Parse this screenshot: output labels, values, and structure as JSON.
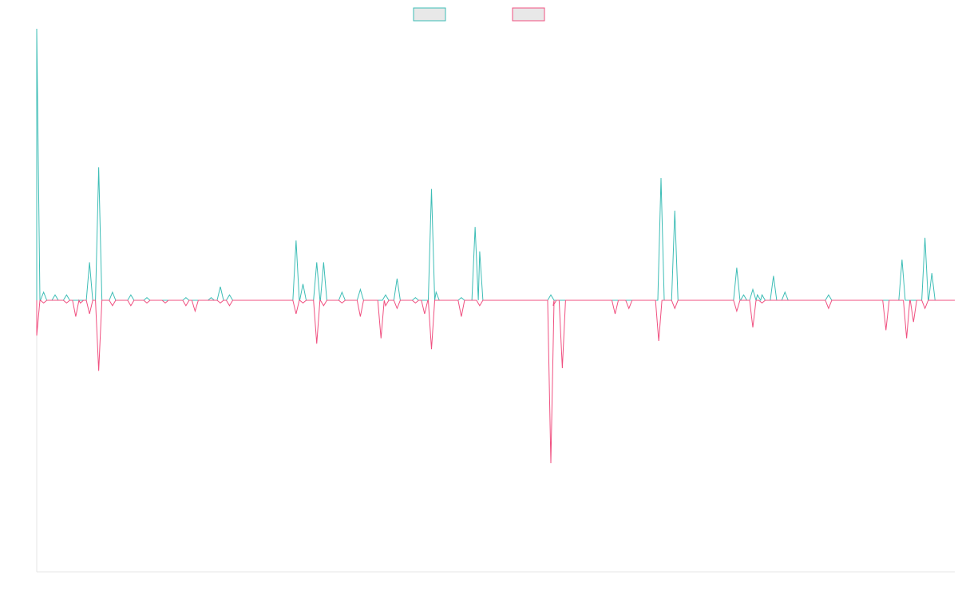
{
  "chart_data": {
    "type": "line",
    "title": "",
    "xlabel": "",
    "ylabel": "",
    "ylim": [
      -1,
      1
    ],
    "grid": false,
    "legend_position": "top-center",
    "series": [
      {
        "color": "#3dbdb6",
        "fill": "#e8e8e8",
        "events": [
          [
            0,
            1.0
          ],
          [
            1.5,
            0.03
          ],
          [
            4,
            0.02
          ],
          [
            6.5,
            0.02
          ],
          [
            11.5,
            0.14
          ],
          [
            13.5,
            0.49
          ],
          [
            16.5,
            0.03
          ],
          [
            20.5,
            0.02
          ],
          [
            24,
            0.01
          ],
          [
            32.5,
            0.01
          ],
          [
            38,
            0.01
          ],
          [
            40,
            0.05
          ],
          [
            42,
            0.02
          ],
          [
            56.5,
            0.22
          ],
          [
            58,
            0.06
          ],
          [
            61,
            0.14
          ],
          [
            62.5,
            0.14
          ],
          [
            66.5,
            0.03
          ],
          [
            70.5,
            0.04
          ],
          [
            76,
            0.02
          ],
          [
            78.5,
            0.08
          ],
          [
            82.5,
            0.01
          ],
          [
            86,
            0.41
          ],
          [
            87,
            0.03
          ],
          [
            92.5,
            0.01
          ],
          [
            95.5,
            0.27
          ],
          [
            96.5,
            0.18
          ],
          [
            112,
            0.02
          ],
          [
            136,
            0.45
          ],
          [
            139,
            0.33
          ],
          [
            152.5,
            0.12
          ],
          [
            154,
            0.02
          ],
          [
            156,
            0.04
          ],
          [
            157,
            0.02
          ],
          [
            158,
            0.02
          ],
          [
            160.5,
            0.09
          ],
          [
            163,
            0.03
          ],
          [
            172.5,
            0.02
          ],
          [
            188.5,
            0.15
          ],
          [
            193.5,
            0.23
          ],
          [
            195,
            0.1
          ]
        ]
      },
      {
        "color": "#f05080",
        "fill": "#e8e8e8",
        "events": [
          [
            0,
            0.13
          ],
          [
            1.5,
            0.01
          ],
          [
            6.5,
            0.01
          ],
          [
            8.5,
            0.06
          ],
          [
            9.5,
            0.01
          ],
          [
            11.5,
            0.05
          ],
          [
            13.5,
            0.26
          ],
          [
            16.5,
            0.02
          ],
          [
            20.5,
            0.02
          ],
          [
            24,
            0.01
          ],
          [
            28,
            0.01
          ],
          [
            32.5,
            0.02
          ],
          [
            34.5,
            0.04
          ],
          [
            40,
            0.01
          ],
          [
            42,
            0.02
          ],
          [
            56.5,
            0.05
          ],
          [
            58,
            0.01
          ],
          [
            61,
            0.16
          ],
          [
            62.5,
            0.02
          ],
          [
            66.5,
            0.01
          ],
          [
            70.5,
            0.06
          ],
          [
            75,
            0.14
          ],
          [
            76,
            0.02
          ],
          [
            78.5,
            0.03
          ],
          [
            82.5,
            0.01
          ],
          [
            84.5,
            0.05
          ],
          [
            86,
            0.18
          ],
          [
            92.5,
            0.06
          ],
          [
            96.5,
            0.02
          ],
          [
            112,
            0.6
          ],
          [
            112.5,
            0.02
          ],
          [
            114.5,
            0.25
          ],
          [
            126,
            0.05
          ],
          [
            129,
            0.03
          ],
          [
            135.5,
            0.15
          ],
          [
            139,
            0.03
          ],
          [
            152.5,
            0.04
          ],
          [
            156,
            0.1
          ],
          [
            158,
            0.01
          ],
          [
            172.5,
            0.03
          ],
          [
            185,
            0.11
          ],
          [
            189.5,
            0.14
          ],
          [
            191,
            0.08
          ],
          [
            193.5,
            0.03
          ]
        ]
      }
    ]
  }
}
